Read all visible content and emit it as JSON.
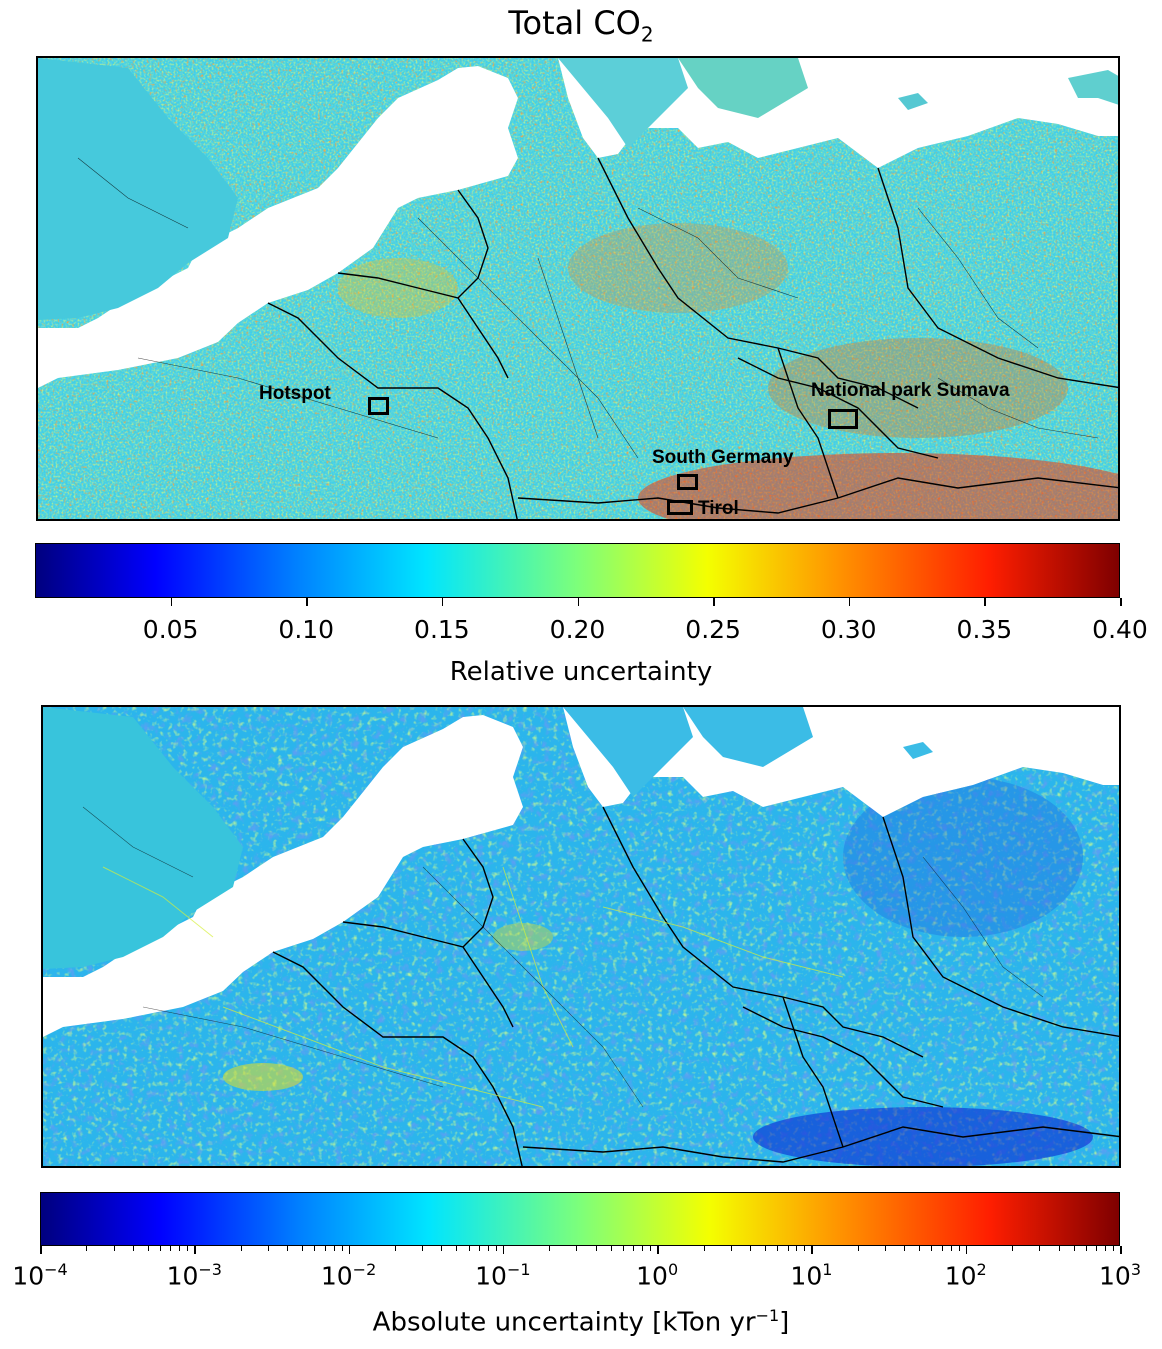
{
  "title": {
    "main": "Total CO",
    "sub": "2"
  },
  "top_map": {
    "annotations": [
      {
        "id": "hotspot",
        "label": "Hotspot"
      },
      {
        "id": "sumava",
        "label": "National park Sumava"
      },
      {
        "id": "south_germany",
        "label": "South Germany"
      },
      {
        "id": "tirol",
        "label": "Tirol"
      }
    ]
  },
  "colorbar_relative": {
    "label": "Relative uncertainty",
    "ticks": [
      "0.05",
      "0.10",
      "0.15",
      "0.20",
      "0.25",
      "0.30",
      "0.35",
      "0.40"
    ],
    "range": [
      0.0,
      0.4
    ],
    "colormap": "jet"
  },
  "colorbar_absolute": {
    "label": "Absolute uncertainty [kTon yr",
    "label_exp": "−1",
    "label_close": "]",
    "base": "10",
    "exponents": [
      "−4",
      "−3",
      "−2",
      "−1",
      "0",
      "1",
      "2",
      "3"
    ],
    "scale": "log",
    "colormap": "jet"
  },
  "colors": {
    "land_mid": "#3fd0e6",
    "water": "#ffffff",
    "border": "#000000"
  }
}
